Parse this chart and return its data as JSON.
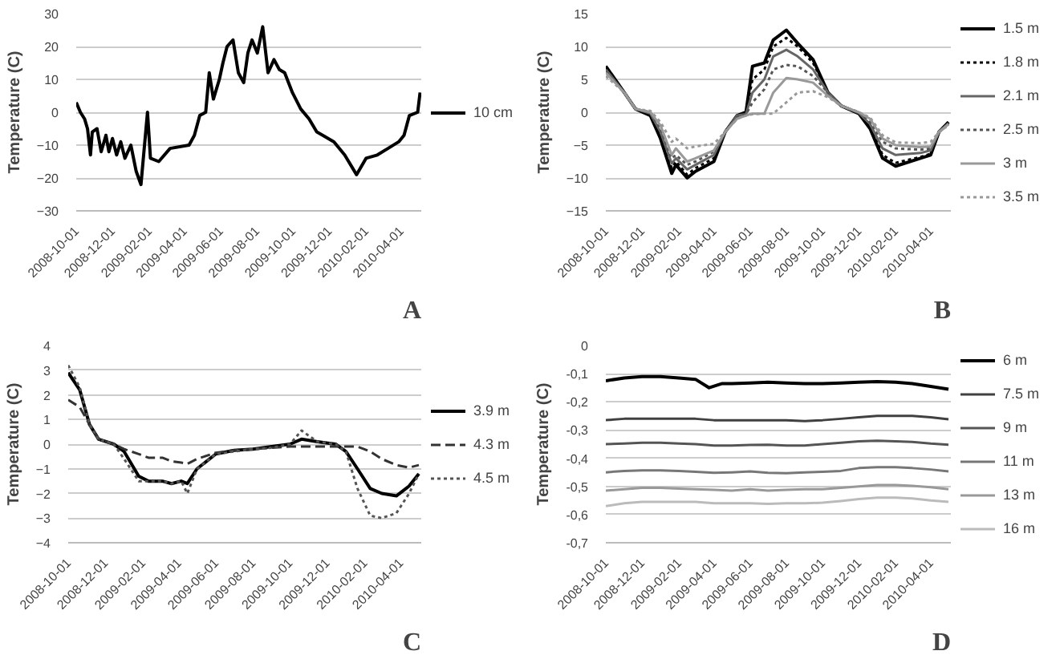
{
  "chart_data": [
    {
      "type": "line",
      "ylabel": "Temperature (C)",
      "annotations": [
        "A"
      ],
      "grid": "y",
      "legend": "right",
      "line_style": "solid",
      "xlim": [
        "2008-10-01",
        "2010-05-05"
      ],
      "xticks": [
        "2008-10-01",
        "2008-12-01",
        "2009-02-01",
        "2009-04-01",
        "2009-06-01",
        "2009-08-01",
        "2009-10-01",
        "2009-12-01",
        "2010-02-01",
        "2010-04-01"
      ],
      "ylim": [
        -30,
        30
      ],
      "yticks": [
        -30,
        -20,
        -10,
        0,
        10,
        20,
        30
      ],
      "series": [
        {
          "name": "10 cm",
          "color": "#000000",
          "x": [
            "2008-10-01",
            "2008-10-08",
            "2008-10-15",
            "2008-10-20",
            "2008-10-25",
            "2008-10-28",
            "2008-11-05",
            "2008-11-12",
            "2008-11-20",
            "2008-11-25",
            "2008-12-01",
            "2008-12-08",
            "2008-12-15",
            "2008-12-22",
            "2009-01-01",
            "2009-01-10",
            "2009-01-18",
            "2009-01-29",
            "2009-02-03",
            "2009-02-17",
            "2009-03-08",
            "2009-04-09",
            "2009-04-18",
            "2009-04-27",
            "2009-05-07",
            "2009-05-13",
            "2009-05-20",
            "2009-05-30",
            "2009-06-05",
            "2009-06-12",
            "2009-06-22",
            "2009-07-01",
            "2009-07-10",
            "2009-07-17",
            "2009-07-24",
            "2009-08-02",
            "2009-08-11",
            "2009-08-20",
            "2009-08-30",
            "2009-09-08",
            "2009-09-17",
            "2009-09-30",
            "2009-10-14",
            "2009-10-28",
            "2009-11-10",
            "2009-11-20",
            "2009-12-09",
            "2009-12-27",
            "2010-01-16",
            "2010-02-01",
            "2010-02-20",
            "2010-03-10",
            "2010-03-28",
            "2010-04-06",
            "2010-04-15",
            "2010-04-29",
            "2010-05-03"
          ],
          "values": [
            3,
            0,
            -2,
            -5,
            -13,
            -6,
            -5,
            -12,
            -7,
            -12,
            -8,
            -13,
            -9,
            -14,
            -10,
            -18,
            -22,
            0,
            -14,
            -15,
            -11,
            -10,
            -7,
            -1,
            0,
            12,
            4,
            10,
            15,
            20,
            22,
            12,
            9,
            18,
            22,
            18,
            26,
            12,
            16,
            13,
            12,
            6,
            1,
            -2,
            -6,
            -7,
            -9,
            -13,
            -19,
            -14,
            -13,
            -11,
            -9,
            -7,
            -1,
            0,
            6
          ]
        }
      ]
    },
    {
      "type": "line",
      "ylabel": "Temperature (C)",
      "annotations": [
        "B"
      ],
      "grid": "y",
      "legend": "right",
      "xlim": [
        "2008-10-01",
        "2010-05-05"
      ],
      "xticks": [
        "2008-10-01",
        "2008-12-01",
        "2009-02-01",
        "2009-04-01",
        "2009-06-01",
        "2009-08-01",
        "2009-10-01",
        "2009-12-01",
        "2010-02-01",
        "2010-04-01"
      ],
      "ylim": [
        -15,
        15
      ],
      "yticks": [
        -15,
        -10,
        -5,
        0,
        5,
        10,
        15
      ],
      "x": [
        "2008-10-01",
        "2008-11-01",
        "2008-11-20",
        "2008-12-15",
        "2009-01-01",
        "2009-01-20",
        "2009-01-27",
        "2009-02-15",
        "2009-03-01",
        "2009-04-01",
        "2009-04-20",
        "2009-05-10",
        "2009-05-25",
        "2009-06-05",
        "2009-06-25",
        "2009-07-10",
        "2009-08-01",
        "2009-08-20",
        "2009-09-15",
        "2009-10-10",
        "2009-11-01",
        "2009-12-01",
        "2009-12-20",
        "2010-01-10",
        "2010-02-01",
        "2010-03-15",
        "2010-04-01",
        "2010-04-15",
        "2010-05-01"
      ],
      "series": [
        {
          "name": "1.5 m",
          "color": "#000000",
          "line_style": "solid",
          "values": [
            7,
            3,
            0.5,
            -0.5,
            -4,
            -9.3,
            -8,
            -10,
            -9,
            -7.5,
            -3,
            -0.5,
            0,
            7,
            7.5,
            11,
            12.5,
            10.5,
            8,
            3,
            1,
            -0.2,
            -2.5,
            -7,
            -8.2,
            -7,
            -6.5,
            -3,
            -1.5
          ]
        },
        {
          "name": "1.8 m",
          "color": "#000000",
          "line_style": "dotted",
          "values": [
            6.8,
            3,
            0.5,
            -0.3,
            -3.5,
            -8.5,
            -7.5,
            -9.5,
            -8.5,
            -7,
            -3,
            -0.5,
            0,
            5,
            6.5,
            10,
            11.3,
            10,
            7.5,
            3,
            1,
            -0.2,
            -2,
            -6.5,
            -7.7,
            -6.8,
            -6.3,
            -3,
            -1.5
          ]
        },
        {
          "name": "2.1 m",
          "color": "#666666",
          "line_style": "solid",
          "values": [
            6.5,
            3,
            0.5,
            -0.2,
            -3,
            -7.8,
            -7,
            -8.7,
            -8,
            -6.5,
            -3,
            -0.5,
            -0.3,
            3,
            5,
            8.5,
            9.5,
            8.5,
            6.5,
            3,
            1,
            -0.1,
            -1.8,
            -5.5,
            -6.5,
            -6.2,
            -5.8,
            -3,
            -1.7
          ]
        },
        {
          "name": "2.5 m",
          "color": "#555555",
          "line_style": "dotted",
          "values": [
            6.2,
            3,
            0.5,
            0,
            -2.5,
            -7,
            -6.5,
            -8,
            -7.5,
            -6,
            -3,
            -0.7,
            -0.3,
            1.5,
            3.5,
            6.5,
            7.2,
            7,
            5.5,
            3,
            1,
            0,
            -1.5,
            -4.5,
            -5.5,
            -5.7,
            -5.5,
            -3,
            -1.8
          ]
        },
        {
          "name": "3 m",
          "color": "#999999",
          "line_style": "solid",
          "values": [
            6,
            3,
            0.5,
            0,
            -2,
            -6.5,
            -5.5,
            -7.5,
            -7,
            -5.8,
            -3,
            -1,
            -0.5,
            -0.2,
            -0.2,
            3,
            5.2,
            5,
            4.5,
            2.5,
            1,
            0,
            -1,
            -4,
            -5,
            -5.3,
            -5.2,
            -3,
            -1.8
          ]
        },
        {
          "name": "3.5 m",
          "color": "#999999",
          "line_style": "dotted",
          "values": [
            5.5,
            3,
            0.5,
            0.2,
            -1.5,
            -4.5,
            -4,
            -5.5,
            -5.2,
            -4.8,
            -3,
            -1,
            -0.5,
            -0.3,
            -0.2,
            -0.2,
            1.5,
            3,
            3.2,
            2.3,
            1,
            0,
            -0.8,
            -3.5,
            -4.6,
            -4.7,
            -4.5,
            -3,
            -2
          ]
        }
      ]
    },
    {
      "type": "line",
      "ylabel": "Temperature (C)",
      "annotations": [
        "C"
      ],
      "grid": "y",
      "legend": "right",
      "xlim": [
        "2008-10-01",
        "2010-05-05"
      ],
      "xticks": [
        "2008-10-01",
        "2008-12-01",
        "2009-02-01",
        "2009-04-01",
        "2009-06-01",
        "2009-08-01",
        "2009-10-01",
        "2009-12-01",
        "2010-02-01",
        "2010-04-01"
      ],
      "ylim": [
        -4,
        4
      ],
      "yticks": [
        -4,
        -3,
        -2,
        -1,
        0,
        1,
        2,
        3,
        4
      ],
      "x": [
        "2008-10-01",
        "2008-10-20",
        "2008-11-05",
        "2008-11-20",
        "2008-12-15",
        "2009-01-01",
        "2009-01-25",
        "2009-02-10",
        "2009-03-05",
        "2009-03-20",
        "2009-04-05",
        "2009-04-15",
        "2009-05-01",
        "2009-06-01",
        "2009-07-01",
        "2009-08-01",
        "2009-09-01",
        "2009-10-01",
        "2009-10-20",
        "2009-11-15",
        "2009-12-15",
        "2010-01-01",
        "2010-01-20",
        "2010-02-10",
        "2010-03-01",
        "2010-03-25",
        "2010-04-15",
        "2010-05-01"
      ],
      "series": [
        {
          "name": "3.9 m",
          "color": "#000000",
          "line_style": "solid",
          "values": [
            2.9,
            2.2,
            0.8,
            0.2,
            0,
            -0.3,
            -1.3,
            -1.5,
            -1.5,
            -1.6,
            -1.5,
            -1.6,
            -1,
            -0.4,
            -0.25,
            -0.2,
            -0.1,
            0,
            0.2,
            0.1,
            0,
            -0.3,
            -1,
            -1.8,
            -2,
            -2.1,
            -1.7,
            -1.2
          ]
        },
        {
          "name": "4.3 m",
          "color": "#333333",
          "line_style": "dashed",
          "values": [
            1.8,
            1.5,
            0.8,
            0.2,
            0,
            -0.2,
            -0.4,
            -0.55,
            -0.55,
            -0.7,
            -0.75,
            -0.8,
            -0.6,
            -0.35,
            -0.25,
            -0.2,
            -0.15,
            -0.1,
            -0.1,
            -0.1,
            -0.1,
            -0.1,
            -0.1,
            -0.3,
            -0.6,
            -0.85,
            -0.95,
            -0.85
          ]
        },
        {
          "name": "4.5 m",
          "color": "#555555",
          "line_style": "dotted",
          "values": [
            3.2,
            2.3,
            0.8,
            0.2,
            0,
            -0.6,
            -1.5,
            -1.5,
            -1.5,
            -1.6,
            -1.5,
            -2,
            -1,
            -0.4,
            -0.3,
            -0.2,
            -0.15,
            0,
            0.55,
            0.1,
            0,
            -0.3,
            -1.8,
            -2.9,
            -3,
            -2.8,
            -2,
            -1.2
          ]
        }
      ]
    },
    {
      "type": "line",
      "ylabel": "Temperature (C)",
      "annotations": [
        "D"
      ],
      "grid": "y",
      "legend": "right",
      "line_style": "solid",
      "xlim": [
        "2008-10-01",
        "2010-05-05"
      ],
      "xticks": [
        "2008-10-01",
        "2008-12-01",
        "2009-02-01",
        "2009-04-01",
        "2009-06-01",
        "2009-08-01",
        "2009-10-01",
        "2009-12-01",
        "2010-02-01",
        "2010-04-01"
      ],
      "ylim": [
        -0.7,
        0
      ],
      "yticks": [
        {
          "value": -0.7,
          "label": "-0,7"
        },
        {
          "value": -0.6,
          "label": "-0,6"
        },
        {
          "value": -0.5,
          "label": "-0,5"
        },
        {
          "value": -0.4,
          "label": "-0,4"
        },
        {
          "value": -0.3,
          "label": "-0,3"
        },
        {
          "value": -0.2,
          "label": "-0,2"
        },
        {
          "value": -0.1,
          "label": "-0,1"
        },
        0
      ],
      "x": [
        "2008-10-01",
        "2008-11-01",
        "2008-12-01",
        "2009-01-01",
        "2009-02-01",
        "2009-03-01",
        "2009-04-01",
        "2009-05-01",
        "2009-06-01",
        "2009-07-01",
        "2009-08-01",
        "2009-09-01",
        "2009-10-01",
        "2009-11-01",
        "2009-12-01",
        "2010-01-01",
        "2010-02-01",
        "2010-03-01",
        "2010-04-01",
        "2010-05-01"
      ],
      "series": [
        {
          "name": "6 m",
          "color": "#000000",
          "x": [
            "2008-10-01",
            "2008-11-01",
            "2008-12-01",
            "2009-01-01",
            "2009-02-01",
            "2009-03-01",
            "2009-03-24",
            "2009-04-15",
            "2009-05-01",
            "2009-06-01",
            "2009-07-01",
            "2009-08-01",
            "2009-09-01",
            "2009-10-01",
            "2009-11-01",
            "2009-12-01",
            "2010-01-01",
            "2010-02-01",
            "2010-03-01",
            "2010-04-01",
            "2010-05-01"
          ],
          "values": [
            -0.125,
            -0.115,
            -0.11,
            -0.11,
            -0.115,
            -0.12,
            -0.15,
            -0.135,
            -0.135,
            -0.133,
            -0.13,
            -0.133,
            -0.135,
            -0.135,
            -0.133,
            -0.13,
            -0.128,
            -0.13,
            -0.135,
            -0.145,
            -0.155
          ]
        },
        {
          "name": "7.5 m",
          "color": "#404040",
          "values": [
            -0.265,
            -0.26,
            -0.26,
            -0.26,
            -0.26,
            -0.26,
            -0.265,
            -0.265,
            -0.265,
            -0.265,
            -0.265,
            -0.268,
            -0.265,
            -0.26,
            -0.255,
            -0.25,
            -0.25,
            -0.25,
            -0.255,
            -0.262
          ]
        },
        {
          "name": "9 m",
          "color": "#555555",
          "values": [
            -0.35,
            -0.348,
            -0.345,
            -0.345,
            -0.348,
            -0.35,
            -0.355,
            -0.355,
            -0.353,
            -0.352,
            -0.355,
            -0.355,
            -0.35,
            -0.345,
            -0.34,
            -0.338,
            -0.34,
            -0.342,
            -0.348,
            -0.352
          ]
        },
        {
          "name": "11 m",
          "color": "#777777",
          "values": [
            -0.45,
            -0.445,
            -0.443,
            -0.443,
            -0.445,
            -0.448,
            -0.452,
            -0.45,
            -0.447,
            -0.452,
            -0.453,
            -0.45,
            -0.448,
            -0.445,
            -0.435,
            -0.432,
            -0.432,
            -0.435,
            -0.44,
            -0.447
          ]
        },
        {
          "name": "13 m",
          "color": "#999999",
          "values": [
            -0.515,
            -0.51,
            -0.505,
            -0.505,
            -0.508,
            -0.51,
            -0.512,
            -0.515,
            -0.51,
            -0.515,
            -0.512,
            -0.51,
            -0.51,
            -0.505,
            -0.5,
            -0.495,
            -0.495,
            -0.498,
            -0.503,
            -0.51
          ]
        },
        {
          "name": "16 m",
          "color": "#bbbbbb",
          "values": [
            -0.57,
            -0.56,
            -0.555,
            -0.555,
            -0.555,
            -0.555,
            -0.56,
            -0.56,
            -0.56,
            -0.562,
            -0.56,
            -0.56,
            -0.558,
            -0.552,
            -0.545,
            -0.54,
            -0.54,
            -0.543,
            -0.55,
            -0.555
          ]
        }
      ]
    }
  ]
}
